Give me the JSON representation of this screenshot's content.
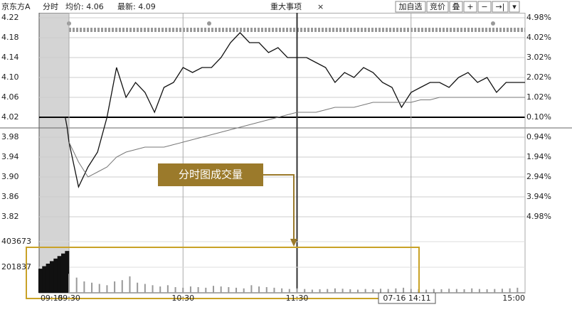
{
  "header": {
    "stock": "京东方A",
    "mode": "分时",
    "avg_label": "均价: 4.06",
    "latest_label": "最新: 4.09",
    "tab": "重大事项",
    "close": "×",
    "buttons": [
      "加自选",
      "竞价",
      "叠",
      "+",
      "−",
      "→|",
      "▾"
    ]
  },
  "chart_data": {
    "type": "line",
    "x": [
      -15,
      -10,
      -5,
      -2,
      -1,
      0,
      5,
      10,
      15,
      20,
      25,
      30,
      35,
      40,
      45,
      50,
      55,
      60,
      65,
      70,
      75,
      80,
      85,
      90,
      95,
      100,
      105,
      110,
      115,
      120,
      125,
      130,
      135,
      140,
      145,
      150,
      155,
      160,
      165,
      170,
      175,
      180,
      185,
      190,
      195,
      200,
      205,
      210,
      215,
      220,
      225,
      230,
      235,
      240
    ],
    "series": [
      {
        "color": "#111111",
        "values": [
          4.02,
          4.02,
          4.02,
          4.02,
          4.0,
          3.97,
          3.88,
          3.92,
          3.95,
          4.02,
          4.12,
          4.06,
          4.09,
          4.07,
          4.03,
          4.08,
          4.09,
          4.12,
          4.11,
          4.12,
          4.12,
          4.14,
          4.17,
          4.19,
          4.17,
          4.17,
          4.15,
          4.16,
          4.14,
          4.14,
          4.14,
          4.13,
          4.12,
          4.09,
          4.11,
          4.1,
          4.12,
          4.11,
          4.09,
          4.08,
          4.04,
          4.07,
          4.08,
          4.09,
          4.09,
          4.08,
          4.1,
          4.11,
          4.09,
          4.1,
          4.07,
          4.09,
          4.09,
          4.09
        ]
      },
      {
        "color": "#777777",
        "values": [
          null,
          null,
          null,
          null,
          null,
          3.97,
          3.93,
          3.9,
          3.91,
          3.92,
          3.94,
          3.95,
          3.955,
          3.96,
          3.96,
          3.96,
          3.965,
          3.97,
          3.975,
          3.98,
          3.985,
          3.99,
          3.995,
          4.0,
          4.005,
          4.01,
          4.015,
          4.02,
          4.025,
          4.03,
          4.03,
          4.03,
          4.035,
          4.04,
          4.04,
          4.04,
          4.045,
          4.05,
          4.05,
          4.05,
          4.05,
          4.05,
          4.055,
          4.055,
          4.06,
          4.06,
          4.06,
          4.06,
          4.06,
          4.06,
          4.06,
          4.06,
          4.06,
          4.06
        ]
      }
    ],
    "ylim": [
      3.82,
      4.22
    ],
    "yticks": [
      {
        "value": 4.22,
        "label": "4.22"
      },
      {
        "value": 4.18,
        "label": "4.18"
      },
      {
        "value": 4.14,
        "label": "4.14"
      },
      {
        "value": 4.1,
        "label": "4.10"
      },
      {
        "value": 4.06,
        "label": "4.06"
      },
      {
        "value": 4.02,
        "label": "4.02"
      },
      {
        "value": 3.98,
        "label": "3.98"
      },
      {
        "value": 3.94,
        "label": "3.94"
      },
      {
        "value": 3.9,
        "label": "3.90"
      },
      {
        "value": 3.86,
        "label": "3.86"
      },
      {
        "value": 3.82,
        "label": "3.82"
      }
    ],
    "pct_labels": [
      "4.98%",
      "4.02%",
      "3.02%",
      "2.02%",
      "1.02%",
      "0.10%",
      "0.94%",
      "1.94%",
      "2.94%",
      "3.94%",
      "4.98%"
    ],
    "xlim": [
      -15,
      240
    ],
    "xticks": [
      {
        "value": -15,
        "label": "09:15"
      },
      {
        "value": 0,
        "label": "09:30"
      },
      {
        "value": 60,
        "label": "10:30"
      },
      {
        "value": 120,
        "label": "11:30"
      },
      {
        "value": 240,
        "label": "15:00"
      }
    ],
    "xgrid": [
      0,
      60,
      120,
      180,
      240
    ],
    "cursor_label": "07-16 14:11",
    "volume": {
      "x": [
        -15,
        -13,
        -11,
        -9,
        -7,
        -5,
        -3,
        -1,
        0,
        4,
        8,
        12,
        16,
        20,
        24,
        28,
        32,
        36,
        40,
        44,
        48,
        52,
        56,
        60,
        64,
        68,
        72,
        76,
        80,
        84,
        88,
        92,
        96,
        100,
        104,
        108,
        112,
        116,
        120,
        124,
        128,
        132,
        136,
        140,
        144,
        148,
        152,
        156,
        160,
        164,
        168,
        172,
        176,
        180,
        184,
        188,
        192,
        196,
        200,
        204,
        208,
        212,
        216,
        220,
        224,
        228,
        232,
        236
      ],
      "values": [
        190000,
        210000,
        230000,
        250000,
        270000,
        290000,
        310000,
        330000,
        150000,
        120000,
        90000,
        80000,
        70000,
        60000,
        90000,
        100000,
        130000,
        80000,
        70000,
        60000,
        50000,
        60000,
        45000,
        40000,
        50000,
        45000,
        40000,
        55000,
        50000,
        45000,
        40000,
        35000,
        60000,
        50000,
        45000,
        40000,
        35000,
        30000,
        35000,
        30000,
        25000,
        28000,
        30000,
        35000,
        32000,
        28000,
        25000,
        30000,
        28000,
        32000,
        30000,
        35000,
        40000,
        30000,
        28000,
        25000,
        30000,
        28000,
        32000,
        30000,
        28000,
        35000,
        30000,
        28000,
        30000,
        32000,
        35000,
        40000
      ],
      "ylim": [
        0,
        403673
      ],
      "yticks": [
        403673,
        201837
      ]
    },
    "annotation": "分时图成交量"
  }
}
